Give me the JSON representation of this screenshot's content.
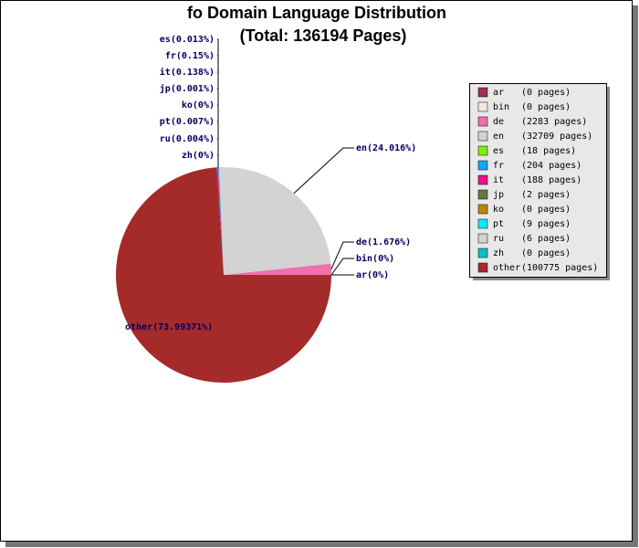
{
  "chart_data": {
    "type": "pie",
    "title": "fo Domain Language Distribution",
    "subtitle": "(Total: 136194 Pages)",
    "categories": [
      "ar",
      "bin",
      "de",
      "en",
      "es",
      "fr",
      "it",
      "jp",
      "ko",
      "pt",
      "ru",
      "zh",
      "other"
    ],
    "values": [
      0,
      0,
      1.676,
      24.016,
      0.013,
      0.15,
      0.138,
      0.001,
      0,
      0.007,
      0.004,
      0,
      73.99371
    ],
    "value_labels": [
      "ar(0%)",
      "bin(0%)",
      "de(1.676%)",
      "en(24.016%)",
      "es(0.013%)",
      "fr(0.15%)",
      "it(0.138%)",
      "jp(0.001%)",
      "ko(0%)",
      "pt(0.007%)",
      "ru(0.004%)",
      "zh(0%)",
      "other(73.99371%)"
    ],
    "legend_labels": [
      "(0 pages)",
      "(0 pages)",
      "(2283 pages)",
      "(32709 pages)",
      "(18 pages)",
      "(204 pages)",
      "(188 pages)",
      "(2 pages)",
      "(0 pages)",
      "(9 pages)",
      "(6 pages)",
      "(0 pages)",
      "(100775 pages)"
    ],
    "colors": [
      "#a0305a",
      "#f5e8e0",
      "#f070b0",
      "#d3d3d3",
      "#80ee10",
      "#10a8f0",
      "#f0108a",
      "#607a40",
      "#b8860b",
      "#10e8f8",
      "#d3d3d3",
      "#10bcc8",
      "#a52a2a"
    ]
  }
}
